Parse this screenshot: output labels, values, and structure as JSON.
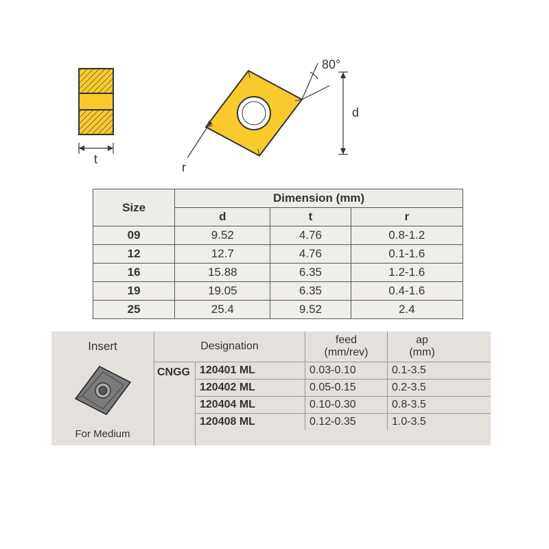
{
  "diagram": {
    "angle_label": "80°",
    "d_label": "d",
    "t_label": "t",
    "r_label": "r",
    "insert_color": "#f9c92e",
    "insert_stroke": "#333333",
    "hatch_color": "#333333",
    "dim_line_color": "#333333",
    "dim_text_color": "#333333"
  },
  "table1": {
    "size_header": "Size",
    "dim_header": "Dimension (mm)",
    "cols": [
      "d",
      "t",
      "r"
    ],
    "rows": [
      {
        "size": "09",
        "d": "9.52",
        "t": "4.76",
        "r": "0.8-1.2"
      },
      {
        "size": "12",
        "d": "12.7",
        "t": "4.76",
        "r": "0.1-1.6"
      },
      {
        "size": "16",
        "d": "15.88",
        "t": "6.35",
        "r": "1.2-1.6"
      },
      {
        "size": "19",
        "d": "19.05",
        "t": "6.35",
        "r": "0.4-1.6"
      },
      {
        "size": "25",
        "d": "25.4",
        "t": "9.52",
        "r": "2.4"
      }
    ],
    "bg_color": "#f0eeea",
    "border_color": "#555555"
  },
  "table2": {
    "insert_header": "Insert",
    "desig_header": "Designation",
    "feed_header": "feed",
    "feed_sub": "(mm/rev)",
    "ap_header": "ap",
    "ap_sub": "(mm)",
    "group": "CNGG",
    "caption": "For Medium",
    "rows": [
      {
        "desig": "120401 ML",
        "feed": "0.03-0.10",
        "ap": "0.1-3.5"
      },
      {
        "desig": "120402 ML",
        "feed": "0.05-0.15",
        "ap": "0.2-3.5"
      },
      {
        "desig": "120404 ML",
        "feed": "0.10-0.30",
        "ap": "0.8-3.5"
      },
      {
        "desig": "120408 ML",
        "feed": "0.12-0.35",
        "ap": "1.0-3.5"
      }
    ],
    "bg_color": "#e4e1dd",
    "border_color": "#999999",
    "insert_icon_fill": "#777777",
    "insert_icon_stroke": "#222222"
  }
}
